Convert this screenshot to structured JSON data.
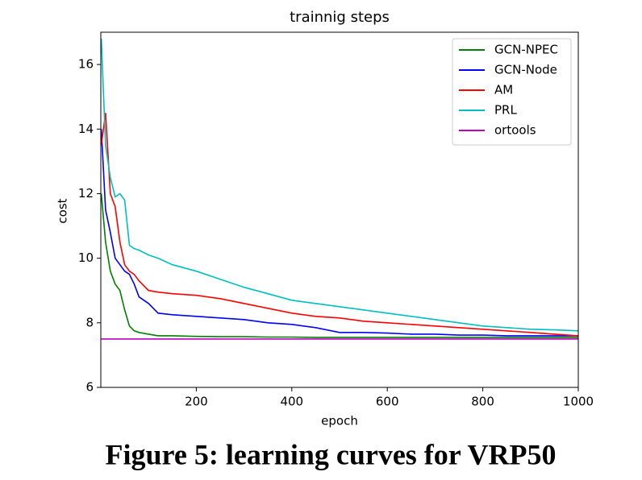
{
  "chart_data": {
    "type": "line",
    "title": "trainnig steps",
    "x_label": "epoch",
    "y_label": "cost",
    "x": [
      1,
      10,
      20,
      30,
      40,
      50,
      60,
      70,
      80,
      100,
      120,
      150,
      200,
      250,
      300,
      350,
      400,
      450,
      500,
      550,
      600,
      650,
      700,
      750,
      800,
      850,
      900,
      950,
      1000
    ],
    "series": [
      {
        "name": "GCN-NPEC",
        "color": "#008000",
        "values": [
          12.0,
          10.5,
          9.6,
          9.2,
          9.0,
          8.4,
          7.9,
          7.75,
          7.7,
          7.65,
          7.6,
          7.6,
          7.58,
          7.57,
          7.57,
          7.56,
          7.56,
          7.55,
          7.55,
          7.55,
          7.55,
          7.55,
          7.55,
          7.55,
          7.55,
          7.55,
          7.55,
          7.55,
          7.55
        ]
      },
      {
        "name": "GCN-Node",
        "color": "#0000ff",
        "values": [
          14.0,
          11.5,
          10.8,
          10.0,
          9.8,
          9.6,
          9.5,
          9.2,
          8.8,
          8.6,
          8.3,
          8.25,
          8.2,
          8.15,
          8.1,
          8.0,
          7.95,
          7.85,
          7.7,
          7.7,
          7.68,
          7.65,
          7.65,
          7.62,
          7.62,
          7.6,
          7.6,
          7.6,
          7.6
        ]
      },
      {
        "name": "AM",
        "color": "#ff0000",
        "values": [
          13.5,
          14.5,
          12.0,
          11.6,
          10.5,
          9.8,
          9.6,
          9.5,
          9.3,
          9.0,
          8.95,
          8.9,
          8.85,
          8.75,
          8.6,
          8.45,
          8.3,
          8.2,
          8.15,
          8.05,
          8.0,
          7.95,
          7.9,
          7.85,
          7.8,
          7.75,
          7.7,
          7.65,
          7.6
        ]
      },
      {
        "name": "PRL",
        "color": "#00bfbf",
        "values": [
          16.8,
          13.5,
          12.5,
          11.9,
          12.0,
          11.8,
          10.4,
          10.3,
          10.25,
          10.1,
          10.0,
          9.8,
          9.6,
          9.35,
          9.1,
          8.9,
          8.7,
          8.6,
          8.5,
          8.4,
          8.3,
          8.2,
          8.1,
          8.0,
          7.9,
          7.85,
          7.8,
          7.78,
          7.75
        ]
      },
      {
        "name": "ortools",
        "color": "#bf00bf",
        "values": [
          7.5,
          7.5,
          7.5,
          7.5,
          7.5,
          7.5,
          7.5,
          7.5,
          7.5,
          7.5,
          7.5,
          7.5,
          7.5,
          7.5,
          7.5,
          7.5,
          7.5,
          7.5,
          7.5,
          7.5,
          7.5,
          7.5,
          7.5,
          7.5,
          7.5,
          7.5,
          7.5,
          7.5,
          7.5
        ]
      }
    ],
    "xlim": [
      0,
      1000
    ],
    "xticks": [
      200,
      400,
      600,
      800,
      1000
    ],
    "ylim": [
      6,
      17
    ],
    "yticks": [
      6,
      8,
      10,
      12,
      14,
      16
    ],
    "legend": "upper right",
    "grid": false
  },
  "caption": "Figure 5: learning curves for VRP50"
}
